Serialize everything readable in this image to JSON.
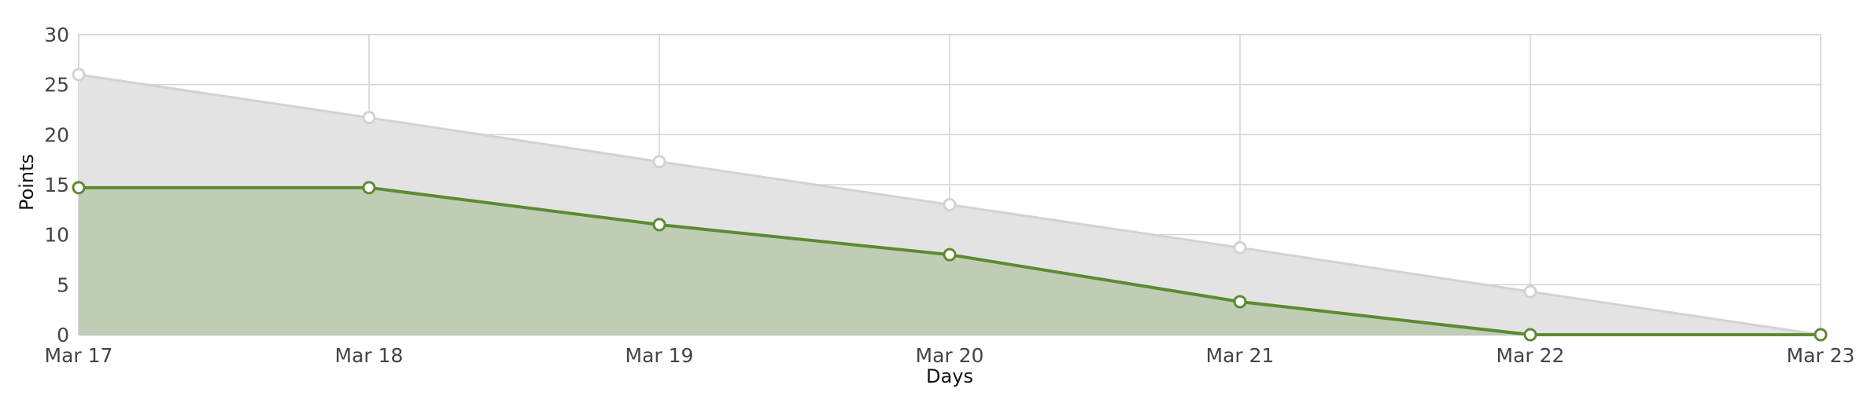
{
  "chart_data": {
    "type": "area",
    "title": "",
    "xlabel": "Days",
    "ylabel": "Points",
    "categories": [
      "Mar 17",
      "Mar 18",
      "Mar 19",
      "Mar 20",
      "Mar 21",
      "Mar 22",
      "Mar 23"
    ],
    "ylim": [
      0,
      30
    ],
    "yticks": [
      0,
      5,
      10,
      15,
      20,
      25,
      30
    ],
    "grid": true,
    "series": [
      {
        "values": [
          26,
          21.7,
          17.3,
          13,
          8.7,
          4.3,
          0
        ],
        "color": "#d2d2d2",
        "fill": "#e3e3e3"
      },
      {
        "values": [
          14.7,
          14.7,
          11,
          8,
          3.3,
          0,
          0
        ],
        "color": "#5d8a32",
        "fill": "#bdcbb2"
      }
    ]
  }
}
